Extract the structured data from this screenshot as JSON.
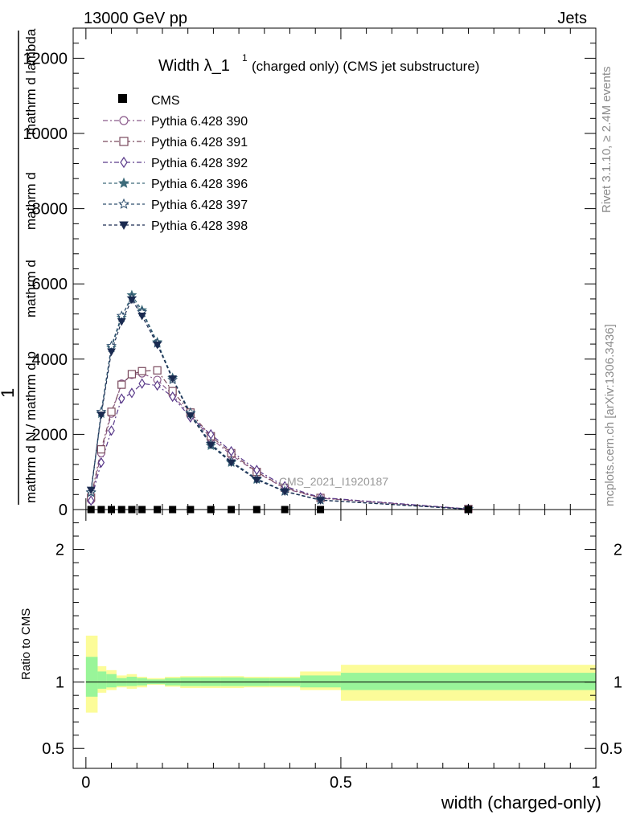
{
  "header": {
    "left": "13000 GeV pp",
    "right": "Jets"
  },
  "side_text": {
    "rivet": "Rivet 3.1.10, ≥ 2.4M events",
    "mcplots": "mcplots.cern.ch [arXiv:1306.3436]"
  },
  "chart_data": {
    "type": "line",
    "title_main": "Width λ_1",
    "title_sup": "1",
    "title_rest": "(charged only) (CMS jet substructure)",
    "watermark": "CMS_2021_I1920187",
    "ylabel_main": [
      "1",
      "mathrm d N / mathrm d p",
      "mathrm d",
      "mathrm d",
      "mathrm d lambda"
    ],
    "ylabel_ratio": "Ratio to CMS",
    "xlabel": "width (charged-only)",
    "xlim": [
      -0.025,
      1.0
    ],
    "ylim_main": [
      0,
      12800
    ],
    "ylim_ratio": [
      0.35,
      2.3
    ],
    "main_yticks": [
      {
        "v": 0,
        "label": "0"
      },
      {
        "v": 2000,
        "label": "2000"
      },
      {
        "v": 4000,
        "label": "4000"
      },
      {
        "v": 6000,
        "label": "6000"
      },
      {
        "v": 8000,
        "label": "8000"
      },
      {
        "v": 10000,
        "label": "10000"
      },
      {
        "v": 12000,
        "label": "12000"
      }
    ],
    "ratio_yticks": [
      {
        "v": 0.5,
        "label": "0.5"
      },
      {
        "v": 1,
        "label": "1"
      },
      {
        "v": 2,
        "label": "2"
      }
    ],
    "xticks": [
      {
        "v": 0,
        "label": "0"
      },
      {
        "v": 0.5,
        "label": "0.5"
      },
      {
        "v": 1,
        "label": "1"
      }
    ],
    "data_x": [
      0.01,
      0.03,
      0.05,
      0.07,
      0.09,
      0.11,
      0.14,
      0.17,
      0.205,
      0.245,
      0.285,
      0.335,
      0.39,
      0.46,
      0.75
    ],
    "data_y": [
      0,
      0,
      0,
      0,
      0,
      0,
      0,
      0,
      0,
      0,
      0,
      0,
      0,
      0,
      0
    ],
    "series": [
      {
        "name": "Pythia 6.428 390",
        "color": "#8b5a8b",
        "marker": "circle-open",
        "dash": "6,3,2,3",
        "values": [
          250,
          1500,
          2550,
          3350,
          3580,
          3620,
          3450,
          3050,
          2500,
          1900,
          1450,
          990,
          560,
          300,
          15
        ]
      },
      {
        "name": "Pythia 6.428 391",
        "color": "#7a4a5e",
        "marker": "square-open",
        "dash": "6,3,2,3",
        "values": [
          320,
          1600,
          2600,
          3320,
          3600,
          3680,
          3700,
          3150,
          2580,
          1950,
          1500,
          1000,
          580,
          310,
          15
        ]
      },
      {
        "name": "Pythia 6.428 392",
        "color": "#5a3a8a",
        "marker": "diamond-open",
        "dash": "6,3,2,3",
        "values": [
          240,
          1250,
          2100,
          2950,
          3100,
          3350,
          3300,
          3000,
          2450,
          2000,
          1550,
          1050,
          620,
          320,
          15
        ]
      },
      {
        "name": "Pythia 6.428 396",
        "color": "#3d6b7a",
        "marker": "star-filled",
        "dash": "4,3",
        "values": [
          450,
          2550,
          4300,
          5100,
          5700,
          5300,
          4450,
          3500,
          2550,
          1700,
          1250,
          800,
          480,
          250,
          10
        ]
      },
      {
        "name": "Pythia 6.428 397",
        "color": "#2e4f6e",
        "marker": "star-open",
        "dash": "4,3",
        "values": [
          460,
          2600,
          4350,
          5150,
          5620,
          5250,
          4420,
          3450,
          2580,
          1750,
          1280,
          820,
          490,
          255,
          10
        ]
      },
      {
        "name": "Pythia 6.428 398",
        "color": "#1a2a50",
        "marker": "tri-down-filled",
        "dash": "4,3",
        "values": [
          520,
          2520,
          4200,
          5000,
          5580,
          5150,
          4380,
          3480,
          2500,
          1720,
          1250,
          790,
          480,
          250,
          10
        ]
      }
    ],
    "ratio_bands": [
      {
        "x0": 0.0,
        "x1": 0.023,
        "inner": [
          0.89,
          1.19
        ],
        "outer": [
          0.77,
          1.35
        ]
      },
      {
        "x0": 0.023,
        "x1": 0.04,
        "inner": [
          0.95,
          1.08
        ],
        "outer": [
          0.92,
          1.12
        ]
      },
      {
        "x0": 0.04,
        "x1": 0.06,
        "inner": [
          0.96,
          1.06
        ],
        "outer": [
          0.94,
          1.09
        ]
      },
      {
        "x0": 0.06,
        "x1": 0.08,
        "inner": [
          0.97,
          1.03
        ],
        "outer": [
          0.96,
          1.05
        ]
      },
      {
        "x0": 0.08,
        "x1": 0.1,
        "inner": [
          0.97,
          1.04
        ],
        "outer": [
          0.95,
          1.06
        ]
      },
      {
        "x0": 0.1,
        "x1": 0.12,
        "inner": [
          0.975,
          1.03
        ],
        "outer": [
          0.96,
          1.04
        ]
      },
      {
        "x0": 0.12,
        "x1": 0.155,
        "inner": [
          0.985,
          1.02
        ],
        "outer": [
          0.98,
          1.03
        ]
      },
      {
        "x0": 0.155,
        "x1": 0.185,
        "inner": [
          0.975,
          1.03
        ],
        "outer": [
          0.965,
          1.04
        ]
      },
      {
        "x0": 0.185,
        "x1": 0.225,
        "inner": [
          0.97,
          1.035
        ],
        "outer": [
          0.955,
          1.045
        ]
      },
      {
        "x0": 0.225,
        "x1": 0.265,
        "inner": [
          0.97,
          1.035
        ],
        "outer": [
          0.955,
          1.045
        ]
      },
      {
        "x0": 0.265,
        "x1": 0.31,
        "inner": [
          0.97,
          1.035
        ],
        "outer": [
          0.955,
          1.045
        ]
      },
      {
        "x0": 0.31,
        "x1": 0.36,
        "inner": [
          0.97,
          1.03
        ],
        "outer": [
          0.96,
          1.04
        ]
      },
      {
        "x0": 0.36,
        "x1": 0.42,
        "inner": [
          0.97,
          1.03
        ],
        "outer": [
          0.96,
          1.04
        ]
      },
      {
        "x0": 0.42,
        "x1": 0.5,
        "inner": [
          0.96,
          1.05
        ],
        "outer": [
          0.94,
          1.08
        ]
      },
      {
        "x0": 0.5,
        "x1": 1.0,
        "inner": [
          0.94,
          1.07
        ],
        "outer": [
          0.86,
          1.13
        ]
      }
    ],
    "band_colors": {
      "inner": "#99f599",
      "outer": "#fcfc99"
    },
    "legend_cms": "CMS"
  }
}
